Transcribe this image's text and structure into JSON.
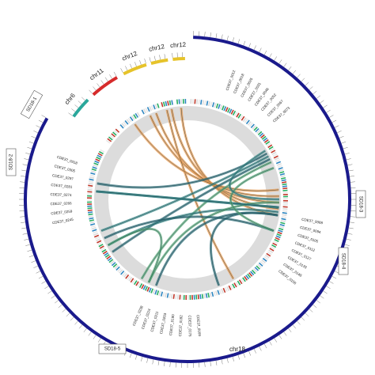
{
  "chromosomes": [
    {
      "label": "chr6"
    },
    {
      "label": "chr11"
    },
    {
      "label": "chr12"
    },
    {
      "label": "chr12"
    },
    {
      "label": "chr12"
    },
    {
      "label": "chr18"
    }
  ],
  "segments": [
    {
      "label": "SD18-1"
    },
    {
      "label": "SD18-2"
    },
    {
      "label": "SD18-3"
    },
    {
      "label": "SD18-4"
    },
    {
      "label": "SD18-5"
    }
  ],
  "genes": [
    "CDE37_0012",
    "CDE37_0018",
    "CDE37_0025",
    "CDE37_0031",
    "CDE37_0046",
    "CDE37_0052",
    "CDE37_0067",
    "CDE37_0073",
    "CDE37_0088",
    "CDE37_0094",
    "CDE37_0105",
    "CDE37_0112",
    "CDE37_0127",
    "CDE37_0133",
    "CDE37_0148",
    "CDE37_0156",
    "CDE37_0169",
    "CDE37_0175",
    "CDE37_0182",
    "CDE37_0190",
    "CDE37_0203",
    "CDE37_0211",
    "CDE37_0224",
    "CDE37_0238",
    "CDE37_0245",
    "CDE37_0259",
    "CDE37_0266",
    "CDE37_0274",
    "CDE37_0281",
    "CDE37_0297",
    "CDE37_0305",
    "CDE37_0318"
  ]
}
